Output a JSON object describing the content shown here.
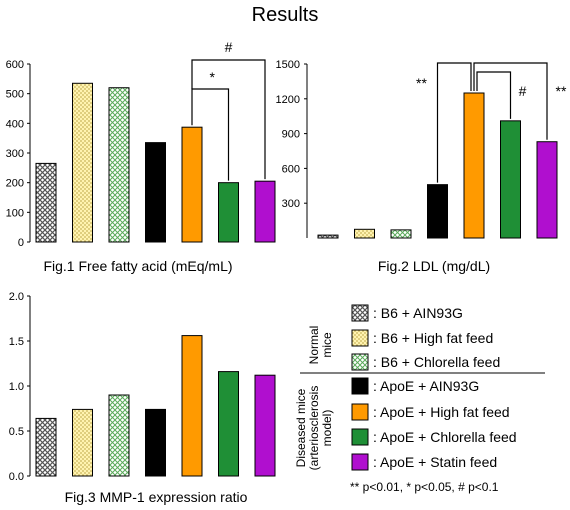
{
  "page": {
    "title": "Results"
  },
  "colors": {
    "b6_ain93g": "#8f8f8f",
    "b6_highfat": "#fff0a6",
    "b6_chlorella": "#bfe3b3",
    "apoe_ain93g": "#000000",
    "apoe_highfat": "#ff9a00",
    "apoe_chlorella": "#1f8f36",
    "apoe_statin": "#b00fcf"
  },
  "legend": {
    "group_normal": [
      "Normal",
      "mice"
    ],
    "group_diseased": [
      "Diseased mice",
      "(arteriosclerosis",
      "model)"
    ],
    "items": [
      {
        "key": "b6_ain93g",
        "label": ": B6 + AIN93G",
        "pattern": "crosshatch"
      },
      {
        "key": "b6_highfat",
        "label": ": B6 + High fat feed",
        "pattern": "dots"
      },
      {
        "key": "b6_chlorella",
        "label": ": B6 + Chlorella feed",
        "pattern": "crosshatch-light"
      },
      {
        "key": "apoe_ain93g",
        "label": ": ApoE + AIN93G",
        "pattern": "solid"
      },
      {
        "key": "apoe_highfat",
        "label": ": ApoE + High fat feed",
        "pattern": "solid"
      },
      {
        "key": "apoe_chlorella",
        "label": ": ApoE + Chlorella feed",
        "pattern": "solid"
      },
      {
        "key": "apoe_statin",
        "label": ": ApoE + Statin feed",
        "pattern": "solid"
      }
    ],
    "footnote": "** p<0.01, * p<0.05, # p<0.1"
  },
  "chart_data": [
    {
      "type": "bar",
      "title": "Fig.1 Free fatty acid (mEq/mL)",
      "categories": [
        "B6 + AIN93G",
        "B6 + High fat feed",
        "B6 + Chlorella feed",
        "ApoE + AIN93G",
        "ApoE + High fat feed",
        "ApoE + Chlorella feed",
        "ApoE + Statin feed"
      ],
      "values": [
        265,
        535,
        520,
        335,
        387,
        200,
        205
      ],
      "ylim": [
        0,
        600
      ],
      "yticks": [
        "0",
        "100",
        "200",
        "300",
        "400",
        "500",
        "600"
      ],
      "significance": [
        {
          "label": "*",
          "from": 4,
          "to": [
            5
          ]
        },
        {
          "label": "#",
          "from": 4,
          "to": [
            6
          ]
        }
      ]
    },
    {
      "type": "bar",
      "title": "Fig.2 LDL (mg/dL)",
      "categories": [
        "B6 + AIN93G",
        "B6 + High fat feed",
        "B6 + Chlorella feed",
        "ApoE + AIN93G",
        "ApoE + High fat feed",
        "ApoE + Chlorella feed",
        "ApoE + Statin feed"
      ],
      "values": [
        25,
        75,
        70,
        460,
        1250,
        1010,
        830
      ],
      "ylim": [
        0,
        1500
      ],
      "yticks": [
        "300",
        "600",
        "900",
        "1200",
        "1500"
      ],
      "significance": [
        {
          "label": "**",
          "from": 4,
          "to": [
            3,
            6
          ]
        },
        {
          "label": "#",
          "from": 4,
          "to": [
            5
          ]
        },
        {
          "label": "**",
          "from": 4,
          "to": [
            6
          ]
        }
      ]
    },
    {
      "type": "bar",
      "title": "Fig.3 MMP-1 expression ratio",
      "categories": [
        "B6 + AIN93G",
        "B6 + High fat feed",
        "B6 + Chlorella feed",
        "ApoE + AIN93G",
        "ApoE + High fat feed",
        "ApoE + Chlorella feed",
        "ApoE + Statin feed"
      ],
      "values": [
        0.64,
        0.74,
        0.9,
        0.74,
        1.56,
        1.16,
        1.12
      ],
      "ylim": [
        0,
        2.0
      ],
      "yticks": [
        "0.0",
        "0.5",
        "1.0",
        "1.5",
        "2.0"
      ]
    }
  ]
}
